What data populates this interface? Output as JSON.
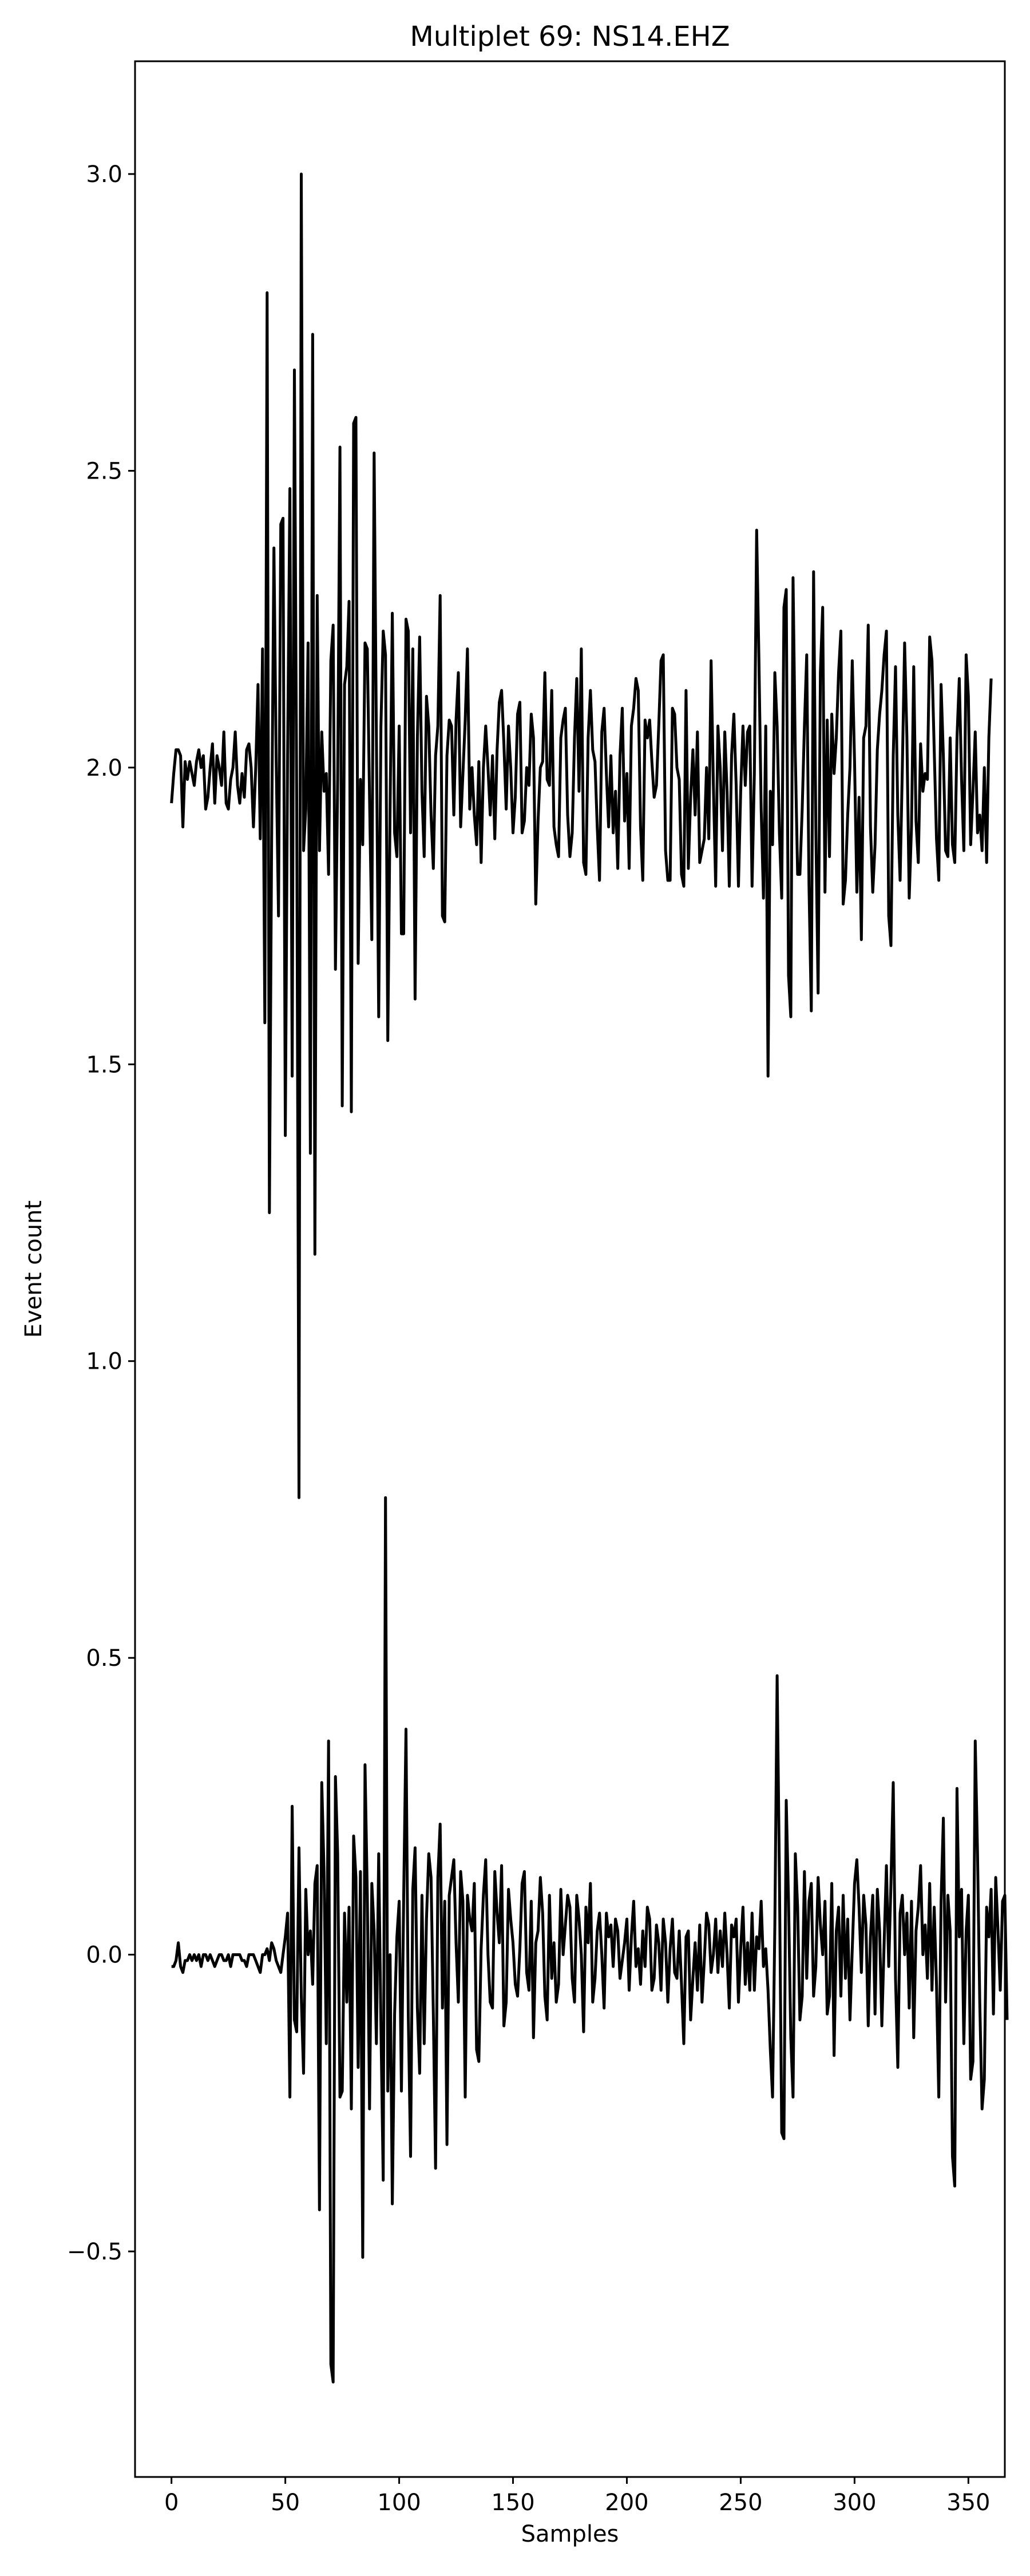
{
  "chart_data": {
    "type": "line",
    "title": "Multiplet 69: NS14.EHZ",
    "xlabel": "Samples",
    "ylabel": "Event count",
    "xlim": [
      -16,
      366
    ],
    "ylim": [
      -0.88,
      3.19
    ],
    "xticks": [
      0,
      50,
      100,
      150,
      200,
      250,
      300,
      350
    ],
    "yticks": [
      -0.5,
      0.0,
      0.5,
      1.0,
      1.5,
      2.0,
      2.5,
      3.0
    ],
    "ytick_labels": [
      "−0.5",
      "0.0",
      "0.5",
      "1.0",
      "1.5",
      "2.0",
      "2.5",
      "3.0"
    ],
    "grid": false,
    "line_color": "#000000",
    "series": [
      {
        "values": [
          1.94,
          1.99,
          2.03,
          2.03,
          2.02,
          1.9,
          2.01,
          1.98,
          2.01,
          1.99,
          1.97,
          2.01,
          2.03,
          2.0,
          2.02,
          1.93,
          1.95,
          2.0,
          2.04,
          1.94,
          2.02,
          2.0,
          1.97,
          2.06,
          1.94,
          1.93,
          1.98,
          2.0,
          2.06,
          1.97,
          1.94,
          1.99,
          1.95,
          2.03,
          2.04,
          2.0,
          1.9,
          2.0,
          2.14,
          1.88,
          2.2,
          1.57,
          2.8,
          1.25,
          1.88,
          2.37,
          2.01,
          1.75,
          2.41,
          2.42,
          1.38,
          2.02,
          2.47,
          1.48,
          2.67,
          1.95,
          0.77,
          3.0,
          1.86,
          1.93,
          2.21,
          1.35,
          2.73,
          1.18,
          2.29,
          1.86,
          2.06,
          1.96,
          1.99,
          1.82,
          2.18,
          2.24,
          1.66,
          1.98,
          2.54,
          1.43,
          2.14,
          2.17,
          2.28,
          1.42,
          2.58,
          2.59,
          1.67,
          1.98,
          1.87,
          2.21,
          2.2,
          1.95,
          1.71,
          2.53,
          2.05,
          1.58,
          2.07,
          2.23,
          2.19,
          1.54,
          1.93,
          2.26,
          1.89,
          1.85,
          2.07,
          1.72,
          1.72,
          2.25,
          2.23,
          1.89,
          2.2,
          1.61,
          2.05,
          2.22,
          1.96,
          1.85,
          2.12,
          2.07,
          1.92,
          1.83,
          2.02,
          2.07,
          2.29,
          1.75,
          1.74,
          2.02,
          2.08,
          2.07,
          1.92,
          2.08,
          2.16,
          1.9,
          1.99,
          2.08,
          2.2,
          1.93,
          2.0,
          1.92,
          1.87,
          2.01,
          1.84,
          2.0,
          2.07,
          2.0,
          1.92,
          2.02,
          1.88,
          2.03,
          2.11,
          2.13,
          2.04,
          1.93,
          2.07,
          2.0,
          1.89,
          1.95,
          2.09,
          2.11,
          1.89,
          1.91,
          2.0,
          1.97,
          2.09,
          2.05,
          1.77,
          1.91,
          2.0,
          2.01,
          2.16,
          1.98,
          1.97,
          2.13,
          1.9,
          1.87,
          1.85,
          2.05,
          2.08,
          2.1,
          1.92,
          1.85,
          1.89,
          2.05,
          2.15,
          1.96,
          2.2,
          1.84,
          1.82,
          2.05,
          2.13,
          2.03,
          2.01,
          1.9,
          1.81,
          2.06,
          2.1,
          1.99,
          1.9,
          2.02,
          1.89,
          1.96,
          1.83,
          2.02,
          2.1,
          1.91,
          1.99,
          1.83,
          2.07,
          2.1,
          2.15,
          2.13,
          1.9,
          1.81,
          2.08,
          2.05,
          2.08,
          2.01,
          1.95,
          1.97,
          2.07,
          2.18,
          2.19,
          1.86,
          1.81,
          1.81,
          2.1,
          2.09,
          2.0,
          1.98,
          1.82,
          1.8,
          2.13,
          1.83,
          1.95,
          2.03,
          1.92,
          2.06,
          1.84,
          1.86,
          1.88,
          2.0,
          1.88,
          2.18,
          1.97,
          1.8,
          2.07,
          2.0,
          1.86,
          2.06,
          1.96,
          1.8,
          2.02,
          2.09,
          1.97,
          1.8,
          1.96,
          2.07,
          1.97,
          2.06,
          2.07,
          1.8,
          1.99,
          2.4,
          2.18,
          1.93,
          1.78,
          2.07,
          1.48,
          1.96,
          1.87,
          2.16,
          2.07,
          1.89,
          1.78,
          2.27,
          2.3,
          1.65,
          1.58,
          2.32,
          2.02,
          1.82,
          1.82,
          1.93,
          2.07,
          2.19,
          1.8,
          1.59,
          2.33,
          1.9,
          1.62,
          2.16,
          2.27,
          1.79,
          2.08,
          1.85,
          2.09,
          1.99,
          2.05,
          2.16,
          2.23,
          1.77,
          1.81,
          1.92,
          2.0,
          2.18,
          2.01,
          1.79,
          1.95,
          1.71,
          2.05,
          2.07,
          2.24,
          1.9,
          1.79,
          1.87,
          2.03,
          2.09,
          2.13,
          2.19,
          2.23,
          1.75,
          1.7,
          2.02,
          2.17,
          1.92,
          1.81,
          2.0,
          2.21,
          2.05,
          1.78,
          1.9,
          2.17,
          1.91,
          1.84,
          2.04,
          1.96,
          1.99,
          1.98,
          2.22,
          2.18,
          2.03,
          1.88,
          1.81,
          2.14,
          2.02,
          1.86,
          1.85,
          2.05,
          1.87,
          1.84,
          2.05,
          2.15,
          1.98,
          1.86,
          2.19,
          2.12,
          1.87,
          1.96,
          2.06,
          1.89,
          1.92,
          1.86,
          2.0,
          1.84,
          2.05,
          2.15
        ]
      },
      {
        "values": [
          -0.02,
          -0.02,
          -0.01,
          0.02,
          -0.02,
          -0.03,
          -0.01,
          -0.01,
          0.0,
          -0.01,
          0.0,
          -0.01,
          0.0,
          -0.02,
          0.0,
          0.0,
          -0.01,
          0.0,
          -0.01,
          -0.02,
          -0.01,
          0.0,
          0.0,
          -0.01,
          -0.01,
          0.0,
          -0.02,
          0.0,
          0.0,
          0.0,
          0.0,
          -0.01,
          -0.01,
          -0.02,
          0.0,
          0.0,
          0.0,
          -0.01,
          -0.02,
          -0.03,
          0.0,
          0.0,
          0.01,
          -0.01,
          0.02,
          0.01,
          -0.01,
          -0.02,
          -0.03,
          0.0,
          0.03,
          0.07,
          -0.24,
          0.25,
          -0.11,
          -0.13,
          0.18,
          -0.07,
          -0.2,
          0.11,
          0.0,
          0.04,
          -0.05,
          0.12,
          0.15,
          -0.43,
          0.29,
          0.14,
          -0.15,
          0.36,
          -0.69,
          -0.72,
          0.3,
          0.17,
          -0.24,
          -0.23,
          0.07,
          -0.08,
          0.08,
          -0.26,
          0.2,
          0.13,
          -0.19,
          0.14,
          -0.51,
          0.32,
          0.1,
          -0.26,
          0.12,
          0.04,
          -0.15,
          0.17,
          -0.12,
          -0.38,
          0.77,
          -0.23,
          0.0,
          -0.42,
          -0.1,
          0.03,
          0.09,
          -0.23,
          0.1,
          0.38,
          -0.1,
          -0.34,
          0.11,
          0.18,
          -0.09,
          -0.2,
          0.1,
          -0.15,
          0.06,
          0.17,
          0.13,
          -0.1,
          -0.36,
          0.13,
          0.22,
          -0.09,
          0.09,
          -0.32,
          0.1,
          0.13,
          0.16,
          0.02,
          -0.08,
          0.14,
          0.09,
          -0.24,
          0.1,
          0.06,
          0.04,
          0.12,
          -0.16,
          -0.18,
          0.01,
          0.1,
          0.16,
          0.0,
          -0.08,
          -0.09,
          0.14,
          0.07,
          0.02,
          0.15,
          -0.12,
          -0.08,
          0.11,
          0.06,
          0.02,
          -0.05,
          -0.07,
          0.01,
          0.12,
          0.14,
          -0.03,
          -0.06,
          0.09,
          -0.14,
          0.02,
          0.04,
          0.13,
          0.07,
          -0.07,
          -0.11,
          0.1,
          -0.04,
          0.02,
          -0.08,
          -0.05,
          0.11,
          0.0,
          0.05,
          0.1,
          0.08,
          -0.04,
          -0.08,
          0.1,
          0.06,
          0.0,
          -0.13,
          0.08,
          0.02,
          0.12,
          -0.08,
          -0.04,
          0.04,
          0.07,
          0.0,
          -0.09,
          0.07,
          0.03,
          0.05,
          -0.02,
          0.06,
          0.04,
          -0.04,
          -0.01,
          0.02,
          0.06,
          -0.06,
          0.03,
          0.09,
          -0.02,
          0.01,
          -0.05,
          0.04,
          -0.02,
          0.08,
          0.06,
          -0.06,
          -0.04,
          0.05,
          0.02,
          -0.06,
          0.06,
          0.02,
          -0.08,
          0.01,
          0.06,
          -0.03,
          -0.04,
          0.04,
          -0.05,
          -0.15,
          0.03,
          0.04,
          -0.11,
          -0.04,
          0.02,
          -0.06,
          0.05,
          -0.08,
          -0.01,
          0.07,
          0.05,
          -0.03,
          0.0,
          0.06,
          -0.03,
          0.04,
          -0.02,
          0.07,
          0.0,
          -0.09,
          0.05,
          0.03,
          0.06,
          -0.08,
          0.01,
          0.08,
          -0.05,
          0.02,
          -0.06,
          0.07,
          -0.06,
          0.03,
          0.01,
          0.09,
          -0.02,
          0.01,
          -0.06,
          -0.16,
          -0.24,
          0.05,
          0.47,
          0.13,
          -0.3,
          -0.31,
          0.26,
          0.09,
          -0.14,
          -0.24,
          0.17,
          0.08,
          -0.11,
          -0.07,
          0.14,
          -0.04,
          0.09,
          0.12,
          -0.07,
          -0.02,
          0.13,
          0.05,
          0.0,
          0.09,
          -0.1,
          -0.07,
          0.12,
          -0.17,
          0.04,
          0.08,
          -0.07,
          0.1,
          -0.04,
          0.06,
          -0.11,
          0.01,
          0.12,
          0.16,
          0.08,
          -0.03,
          0.1,
          0.05,
          -0.12,
          0.03,
          0.1,
          -0.1,
          0.11,
          0.04,
          -0.12,
          0.02,
          0.15,
          -0.02,
          0.12,
          0.29,
          -0.04,
          -0.19,
          0.07,
          0.1,
          0.0,
          0.07,
          -0.09,
          0.09,
          -0.14,
          0.04,
          0.08,
          0.15,
          0.0,
          0.05,
          -0.04,
          0.12,
          -0.06,
          0.08,
          -0.05,
          -0.24,
          0.09,
          0.23,
          -0.08,
          0.1,
          0.04,
          -0.34,
          -0.39,
          0.28,
          0.03,
          0.11,
          -0.15,
          0.04,
          0.1,
          -0.21,
          -0.18,
          0.36,
          0.17,
          -0.08,
          -0.26,
          -0.21,
          0.08,
          0.03,
          0.11,
          -0.1,
          0.13,
          0.04,
          -0.06,
          0.09,
          0.1,
          -0.11
        ]
      }
    ]
  }
}
